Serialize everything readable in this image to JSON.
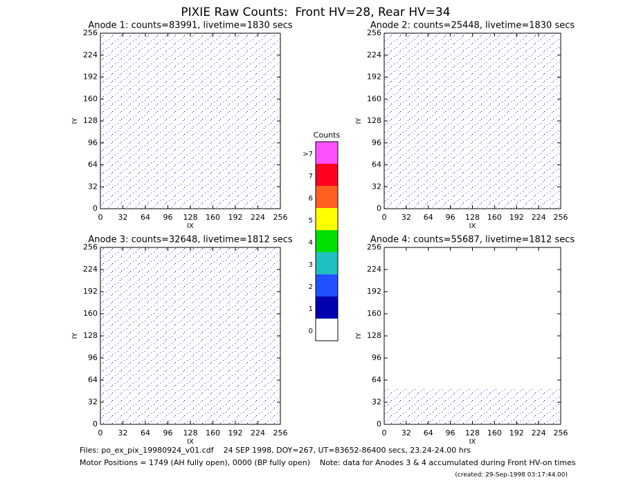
{
  "title": "PIXIE Raw Counts:  Front HV=28, Rear HV=34",
  "chart_data": [
    {
      "type": "heatmap",
      "title": "Anode 1: counts=83991, livetime=1830 secs",
      "xlabel": "IX",
      "ylabel": "IY",
      "xlim": [
        0,
        256
      ],
      "ylim": [
        0,
        256
      ],
      "xticks": [
        0,
        32,
        64,
        96,
        128,
        160,
        192,
        224,
        256
      ],
      "yticks": [
        0,
        32,
        64,
        96,
        128,
        160,
        192,
        224,
        256
      ]
    },
    {
      "type": "heatmap",
      "title": "Anode 2: counts=25448, livetime=1830 secs",
      "xlabel": "IX",
      "ylabel": "IY",
      "xlim": [
        0,
        256
      ],
      "ylim": [
        0,
        256
      ],
      "xticks": [
        0,
        32,
        64,
        96,
        128,
        160,
        192,
        224,
        256
      ],
      "yticks": [
        0,
        32,
        64,
        96,
        128,
        160,
        192,
        224,
        256
      ]
    },
    {
      "type": "heatmap",
      "title": "Anode 3: counts=32648, livetime=1812 secs",
      "xlabel": "IX",
      "ylabel": "IY",
      "xlim": [
        0,
        256
      ],
      "ylim": [
        0,
        256
      ],
      "xticks": [
        0,
        32,
        64,
        96,
        128,
        160,
        192,
        224,
        256
      ],
      "yticks": [
        0,
        32,
        64,
        96,
        128,
        160,
        192,
        224,
        256
      ]
    },
    {
      "type": "heatmap",
      "title": "Anode 4: counts=55687, livetime=1812 secs",
      "xlabel": "IX",
      "ylabel": "IY",
      "xlim": [
        0,
        256
      ],
      "ylim": [
        0,
        256
      ],
      "xticks": [
        0,
        32,
        64,
        96,
        128,
        160,
        192,
        224,
        256
      ],
      "yticks": [
        0,
        32,
        64,
        96,
        128,
        160,
        192,
        224,
        256
      ]
    }
  ],
  "colorbar": {
    "title": "Counts",
    "labels": [
      ">7",
      "7",
      "6",
      "5",
      "4",
      "3",
      "2",
      "1",
      "0"
    ],
    "colors": [
      "#ff50ff",
      "#ff0020",
      "#ff6020",
      "#ffff00",
      "#00e000",
      "#20c0c0",
      "#2050ff",
      "#0000b0",
      "#ffffff"
    ]
  },
  "footer": [
    "Files: po_ex_pix_19980924_v01.cdf    24 SEP 1998, DOY=267, UT=83652-86400 secs, 23.24-24.00 hrs",
    "Motor Positions = 1749 (AH fully open), 0000 (BP fully open)    Note: data for Anodes 3 & 4 accumulated during Front HV-on times"
  ],
  "created": "(created: 29-Sep-1998 03:17:44.00)"
}
